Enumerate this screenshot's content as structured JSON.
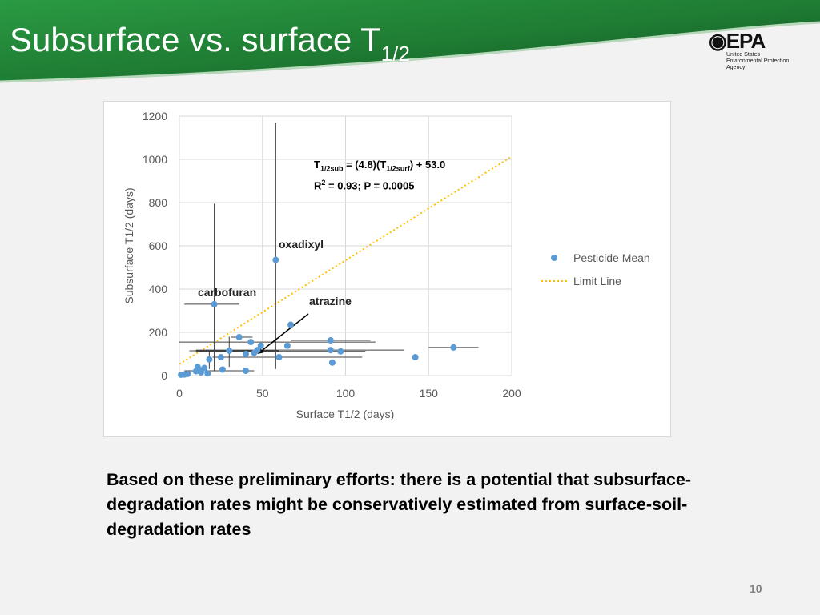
{
  "slide": {
    "title_main": "Subsurface vs. surface T",
    "title_sub": "1/2",
    "body_text": "Based on these preliminary efforts: there is a potential that subsurface-degradation rates might be conservatively estimated from surface-soil-degradation rates",
    "page_number": "10"
  },
  "logo": {
    "mark": "EPA",
    "agency_text": "United States\nEnvironmental Protection\nAgency"
  },
  "colors": {
    "header_green": "#1e7a32",
    "header_dark": "#0f4a1d",
    "point_blue": "#5b9bd5",
    "limit_line": "#ffc000"
  },
  "chart_data": {
    "type": "scatter",
    "xlabel": "Surface T1/2 (days)",
    "ylabel": "Subsurface T1/2 (days)",
    "xlim": [
      0,
      200
    ],
    "ylim": [
      0,
      1200
    ],
    "x_ticks": [
      "0",
      "50",
      "100",
      "150",
      "200"
    ],
    "y_ticks": [
      "0",
      "200",
      "400",
      "600",
      "800",
      "1000",
      "1200"
    ],
    "grid": true,
    "legend_position": "right",
    "legend": [
      {
        "label": "Pesticide Mean",
        "marker": "point"
      },
      {
        "label": "Limit Line",
        "marker": "dotted-line"
      }
    ],
    "equation": {
      "t": "T",
      "sub1": "1/2sub",
      "mid": " = (4.8)(T",
      "sub2": "1/2surf",
      "end": ") + 53.0",
      "r": "R",
      "sup": "2",
      "stats": " = 0.93; P = 0.0005"
    },
    "limit_line": {
      "slope": 4.8,
      "intercept": 53.0,
      "x_range": [
        0,
        200
      ]
    },
    "annotations": [
      {
        "label": "oxadixyl",
        "x": 58,
        "y": 535
      },
      {
        "label": "carbofuran",
        "x": 21,
        "y": 330
      },
      {
        "label": "atrazine",
        "x": 47,
        "y": 100,
        "arrow": true
      }
    ],
    "points": [
      {
        "x": 58,
        "y": 535,
        "ylo": 30,
        "yhi": 1170
      },
      {
        "x": 21,
        "y": 330,
        "xlo": 3,
        "xhi": 36,
        "ylo": 20,
        "yhi": 795
      },
      {
        "x": 67,
        "y": 235
      },
      {
        "x": 36,
        "y": 178,
        "xlo": 31,
        "xhi": 44
      },
      {
        "x": 43,
        "y": 155,
        "xlo": 0,
        "xhi": 118
      },
      {
        "x": 49,
        "y": 138
      },
      {
        "x": 65,
        "y": 138
      },
      {
        "x": 91,
        "y": 163,
        "xlo": 67,
        "xhi": 115
      },
      {
        "x": 165,
        "y": 130,
        "xlo": 150,
        "xhi": 180
      },
      {
        "x": 91,
        "y": 118,
        "xlo": 10,
        "xhi": 135
      },
      {
        "x": 97,
        "y": 112,
        "xlo": 10,
        "xhi": 112
      },
      {
        "x": 30,
        "y": 115,
        "xlo": 6,
        "xhi": 60,
        "ylo": 40,
        "yhi": 180
      },
      {
        "x": 47,
        "y": 118
      },
      {
        "x": 45,
        "y": 105
      },
      {
        "x": 40,
        "y": 100
      },
      {
        "x": 25,
        "y": 85
      },
      {
        "x": 60,
        "y": 85,
        "xlo": 20,
        "xhi": 110
      },
      {
        "x": 18,
        "y": 75,
        "ylo": 30,
        "yhi": 120
      },
      {
        "x": 142,
        "y": 85
      },
      {
        "x": 92,
        "y": 60
      },
      {
        "x": 11,
        "y": 40
      },
      {
        "x": 15,
        "y": 35
      },
      {
        "x": 12,
        "y": 25
      },
      {
        "x": 10,
        "y": 20
      },
      {
        "x": 13,
        "y": 15
      },
      {
        "x": 26,
        "y": 28
      },
      {
        "x": 40,
        "y": 22,
        "xlo": 3,
        "xhi": 45
      },
      {
        "x": 17,
        "y": 10
      },
      {
        "x": 5,
        "y": 8
      },
      {
        "x": 3,
        "y": 5
      },
      {
        "x": 1,
        "y": 4
      }
    ]
  }
}
